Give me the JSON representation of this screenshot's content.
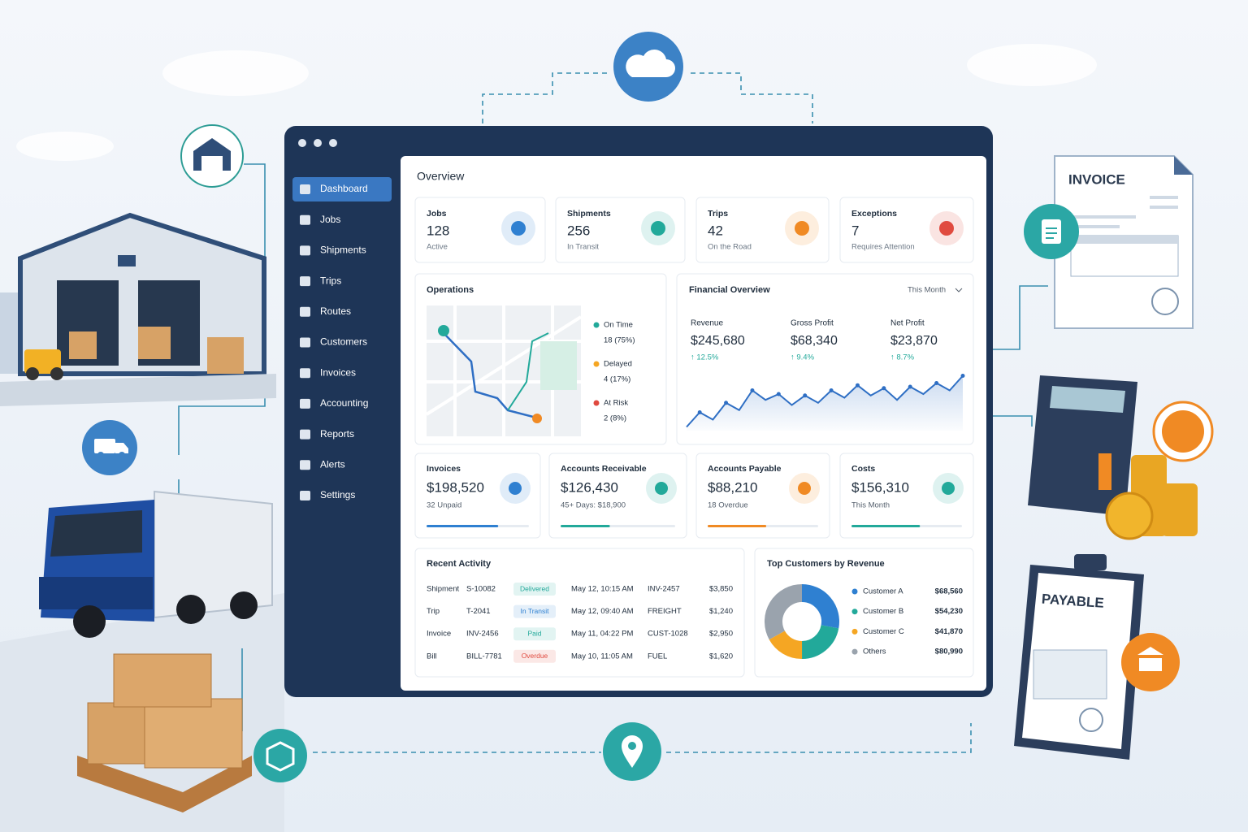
{
  "nav": {
    "items": [
      "Dashboard",
      "Jobs",
      "Shipments",
      "Trips",
      "Routes",
      "Customers",
      "Invoices",
      "Accounting",
      "Reports",
      "Alerts",
      "Settings"
    ],
    "active": 0
  },
  "overview": {
    "title": "Overview"
  },
  "kpis": [
    {
      "label": "Jobs",
      "value": 128,
      "note": "Active",
      "color": "#2f80d1"
    },
    {
      "label": "Shipments",
      "value": 256,
      "note": "In Transit",
      "color": "#22a99a"
    },
    {
      "label": "Trips",
      "value": 42,
      "note": "On the Road",
      "color": "#f08a24"
    },
    {
      "label": "Exceptions",
      "value": 7,
      "note": "Requires Attention",
      "color": "#e04a3f"
    }
  ],
  "operations": {
    "title": "Operations",
    "legend": [
      {
        "name": "On Time",
        "detail": "18 (75%)",
        "color": "#22a99a"
      },
      {
        "name": "Delayed",
        "detail": "4 (17%)",
        "color": "#f5a623"
      },
      {
        "name": "At Risk",
        "detail": "2 (8%)",
        "color": "#e04a3f"
      }
    ]
  },
  "financial": {
    "title": "Financial Overview",
    "period": "This Month",
    "metrics": [
      {
        "label": "Revenue",
        "value": "$245,680",
        "change": "↑ 12.5%"
      },
      {
        "label": "Gross Profit",
        "value": "$68,340",
        "change": "↑ 9.4%"
      },
      {
        "label": "Net Profit",
        "value": "$23,870",
        "change": "↑ 8.7%"
      }
    ],
    "trend": {
      "type": "line",
      "values": [
        5,
        25,
        15,
        38,
        28,
        55,
        42,
        50,
        35,
        48,
        38,
        55,
        45,
        62,
        48,
        58,
        42,
        60,
        50,
        65,
        55,
        75
      ],
      "ylim": [
        0,
        100
      ],
      "color": "#2f6fc4"
    }
  },
  "cards": [
    {
      "label": "Invoices",
      "value": "$198,520",
      "note": "32 Unpaid",
      "progress": 70,
      "color": "#2f80d1"
    },
    {
      "label": "Accounts Receivable",
      "value": "$126,430",
      "note": "45+ Days: $18,900",
      "progress": 43,
      "color": "#22a99a"
    },
    {
      "label": "Accounts Payable",
      "value": "$88,210",
      "note": "18 Overdue",
      "progress": 53,
      "color": "#f08a24"
    },
    {
      "label": "Costs",
      "value": "$156,310",
      "note": "This Month",
      "progress": 62,
      "color": "#22a99a"
    }
  ],
  "activity": {
    "title": "Recent Activity",
    "rows": [
      [
        "Shipment",
        "S-10082",
        "Delivered",
        "May 12, 10:15 AM",
        "INV-2457",
        "$3,850"
      ],
      [
        "Trip",
        "T-2041",
        "In Transit",
        "May 12, 09:40 AM",
        "FREIGHT",
        "$1,240"
      ],
      [
        "Invoice",
        "INV-2456",
        "Paid",
        "May 11, 04:22 PM",
        "CUST-1028",
        "$2,950"
      ],
      [
        "Bill",
        "BILL-7781",
        "Overdue",
        "May 10, 11:05 AM",
        "FUEL",
        "$1,620"
      ]
    ],
    "status_colors": [
      "#22a99a",
      "#2f80d1",
      "#22a99a",
      "#e04a3f"
    ]
  },
  "customers": {
    "type": "pie",
    "title": "Top Customers by Revenue",
    "categories": [
      "Customer A",
      "Customer B",
      "Customer C",
      "Others"
    ],
    "values": [
      68560,
      54230,
      41870,
      80990
    ],
    "value_labels": [
      "$68,560",
      "$54,230",
      "$41,870",
      "$80,990"
    ],
    "colors": [
      "#2f80d1",
      "#22a99a",
      "#f5a623",
      "#9aa3ad"
    ]
  },
  "invoice_doc": {
    "title": "INVOICE"
  },
  "payable_doc": {
    "title": "PAYABLE"
  }
}
